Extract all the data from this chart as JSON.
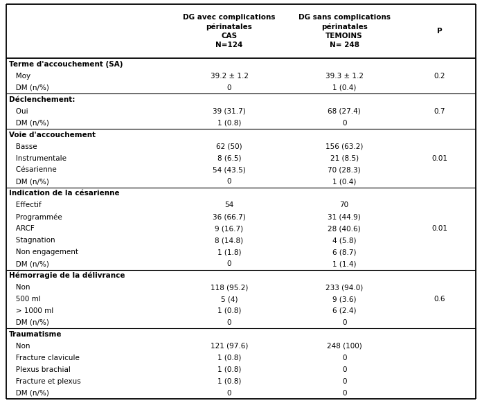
{
  "col_headers": [
    "",
    "DG avec complications\npérinatales\nCAS\nN=124",
    "DG sans complications\npérinatales\nTEMOINS\nN= 248",
    "P"
  ],
  "rows": [
    {
      "label": "Terme d'accouchement (SA)",
      "indent": 0,
      "cas": "",
      "temoins": "",
      "p": "",
      "is_section": true
    },
    {
      "label": "   Moy",
      "indent": 1,
      "cas": "39.2 ± 1.2",
      "temoins": "39.3 ± 1.2",
      "p": "0.2",
      "is_section": false
    },
    {
      "label": "   DM (n/%)",
      "indent": 1,
      "cas": "0",
      "temoins": "1 (0.4)",
      "p": "",
      "is_section": false
    },
    {
      "label": "Déclenchement:",
      "indent": 0,
      "cas": "",
      "temoins": "",
      "p": "",
      "is_section": true
    },
    {
      "label": "   Oui",
      "indent": 1,
      "cas": "39 (31.7)",
      "temoins": "68 (27.4)",
      "p": "0.7",
      "is_section": false
    },
    {
      "label": "   DM (n/%)",
      "indent": 1,
      "cas": "1 (0.8)",
      "temoins": "0",
      "p": "",
      "is_section": false
    },
    {
      "label": "Voie d'accouchement",
      "indent": 0,
      "cas": "",
      "temoins": "",
      "p": "",
      "is_section": true
    },
    {
      "label": "   Basse",
      "indent": 1,
      "cas": "62 (50)",
      "temoins": "156 (63.2)",
      "p": "",
      "is_section": false
    },
    {
      "label": "   Instrumentale",
      "indent": 1,
      "cas": "8 (6.5)",
      "temoins": "21 (8.5)",
      "p": "0.01",
      "is_section": false
    },
    {
      "label": "   Césarienne",
      "indent": 1,
      "cas": "54 (43.5)",
      "temoins": "70 (28.3)",
      "p": "",
      "is_section": false
    },
    {
      "label": "   DM (n/%)",
      "indent": 1,
      "cas": "0",
      "temoins": "1 (0.4)",
      "p": "",
      "is_section": false
    },
    {
      "label": "Indication de la césarienne",
      "indent": 0,
      "cas": "",
      "temoins": "",
      "p": "",
      "is_section": true
    },
    {
      "label": "   Effectif",
      "indent": 1,
      "cas": "54",
      "temoins": "70",
      "p": "",
      "is_section": false
    },
    {
      "label": "   Programmée",
      "indent": 1,
      "cas": "36 (66.7)",
      "temoins": "31 (44.9)",
      "p": "",
      "is_section": false
    },
    {
      "label": "   ARCF",
      "indent": 1,
      "cas": "9 (16.7)",
      "temoins": "28 (40.6)",
      "p": "0.01",
      "is_section": false
    },
    {
      "label": "   Stagnation",
      "indent": 1,
      "cas": "8 (14.8)",
      "temoins": "4 (5.8)",
      "p": "",
      "is_section": false
    },
    {
      "label": "   Non engagement",
      "indent": 1,
      "cas": "1 (1.8)",
      "temoins": "6 (8.7)",
      "p": "",
      "is_section": false
    },
    {
      "label": "   DM (n/%)",
      "indent": 1,
      "cas": "0",
      "temoins": "1 (1.4)",
      "p": "",
      "is_section": false
    },
    {
      "label": "Hémorragie de la délivrance",
      "indent": 0,
      "cas": "",
      "temoins": "",
      "p": "",
      "is_section": true
    },
    {
      "label": "   Non",
      "indent": 1,
      "cas": "118 (95.2)",
      "temoins": "233 (94.0)",
      "p": "",
      "is_section": false
    },
    {
      "label": "   500 ml",
      "indent": 1,
      "cas": "5 (4)",
      "temoins": "9 (3.6)",
      "p": "0.6",
      "is_section": false
    },
    {
      "label": "   > 1000 ml",
      "indent": 1,
      "cas": "1 (0.8)",
      "temoins": "6 (2.4)",
      "p": "",
      "is_section": false
    },
    {
      "label": "   DM (n/%)",
      "indent": 1,
      "cas": "0",
      "temoins": "0",
      "p": "",
      "is_section": false
    },
    {
      "label": "Traumatisme",
      "indent": 0,
      "cas": "",
      "temoins": "",
      "p": "",
      "is_section": true
    },
    {
      "label": "   Non",
      "indent": 1,
      "cas": "121 (97.6)",
      "temoins": "248 (100)",
      "p": "",
      "is_section": false
    },
    {
      "label": "   Fracture clavicule",
      "indent": 1,
      "cas": "1 (0.8)",
      "temoins": "0",
      "p": "",
      "is_section": false
    },
    {
      "label": "   Plexus brachial",
      "indent": 1,
      "cas": "1 (0.8)",
      "temoins": "0",
      "p": "",
      "is_section": false
    },
    {
      "label": "   Fracture et plexus",
      "indent": 1,
      "cas": "1 (0.8)",
      "temoins": "0",
      "p": "",
      "is_section": false
    },
    {
      "label": "   DM (n/%)",
      "indent": 1,
      "cas": "0",
      "temoins": "0",
      "p": "",
      "is_section": false
    }
  ],
  "section_row_indices": [
    0,
    3,
    6,
    11,
    18,
    23
  ],
  "fig_width": 6.96,
  "fig_height": 5.82,
  "text_color": "#000000",
  "bg_color": "#ffffff",
  "line_color": "#000000",
  "header_fontsize": 7.5,
  "body_fontsize": 7.5
}
